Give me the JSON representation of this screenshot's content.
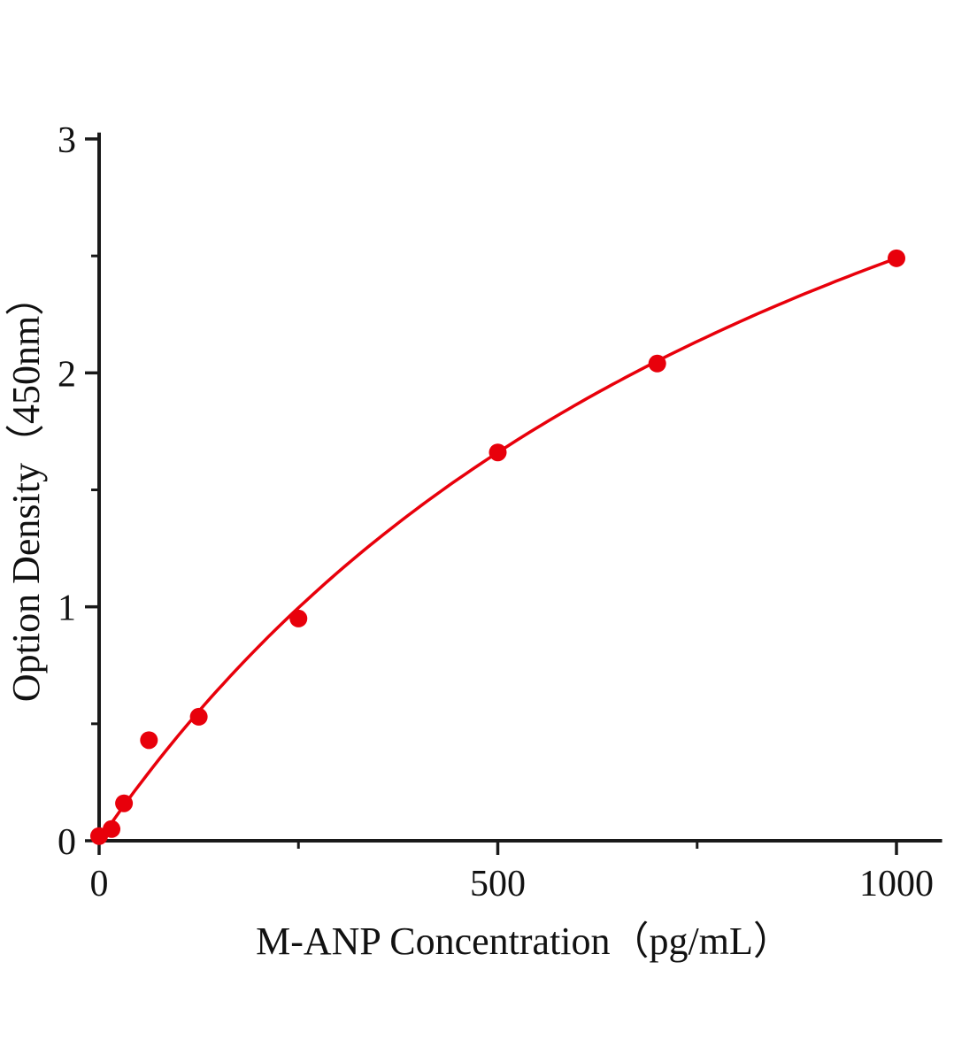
{
  "chart_data": {
    "type": "scatter",
    "title": "",
    "xlabel": "M-ANP Concentration（pg/mL）",
    "ylabel": "Option Density（450nm）",
    "x": [
      0,
      15.6,
      31.2,
      62.5,
      125,
      250,
      500,
      700,
      1000
    ],
    "y": [
      0.02,
      0.05,
      0.16,
      0.43,
      0.53,
      0.95,
      1.66,
      2.04,
      2.49
    ],
    "xlim": [
      0,
      1055
    ],
    "ylim": [
      0,
      3.02
    ],
    "x_major_ticks": [
      0,
      500,
      1000
    ],
    "x_minor_ticks": [
      250,
      750
    ],
    "y_major_ticks": [
      0,
      1,
      2,
      3
    ],
    "y_minor_ticks": [
      0.5,
      1.5,
      2.5
    ],
    "grid": false,
    "legend": "none",
    "marker_color": "#e8000b",
    "line_color": "#e8000b",
    "axis_color": "#1a1a1a",
    "fit": {
      "type": "saturation",
      "formula": "y = a*x/(b+x)",
      "a": 4.98,
      "b": 1000
    }
  }
}
